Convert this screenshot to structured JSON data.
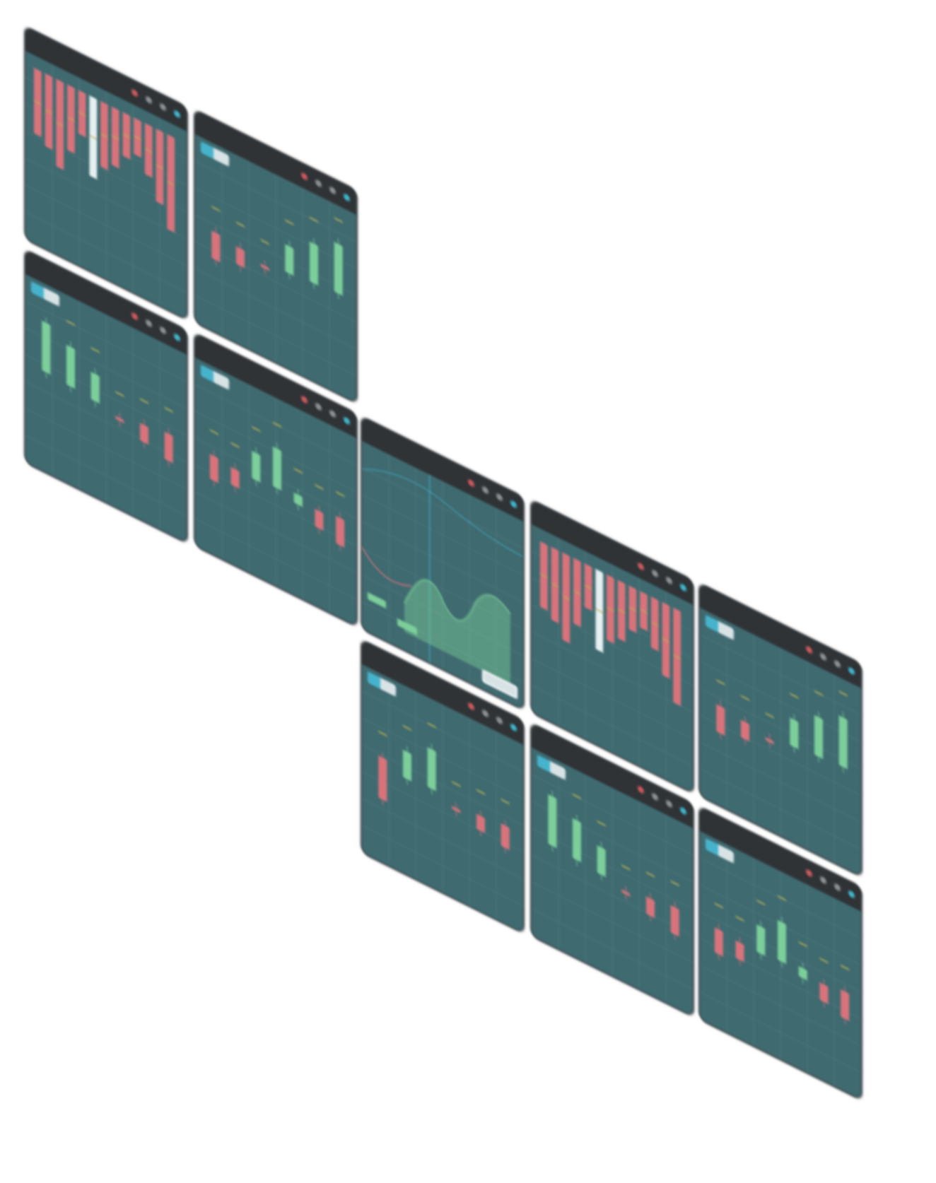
{
  "colors": {
    "panel_bg": "#3e6a70",
    "titlebar_bg": "#2f3336",
    "grid": "#5b8288",
    "bar_negative": "#d9737b",
    "bar_positive": "#7ccf9a",
    "bar_highlight": "#e7f0f0",
    "marker": "#b9b054",
    "curve_red": "#d9737b",
    "curve_area": "#7ccf9a",
    "curve_cyan": "#46b3cc"
  },
  "window_controls": [
    "close-icon",
    "minimize-icon",
    "maximize-icon",
    "help-icon"
  ],
  "panels": [
    {
      "id": "p1",
      "kind": "waterfall",
      "has_tag": false,
      "title": ""
    },
    {
      "id": "p2",
      "kind": "candles",
      "has_tag": true,
      "title": "",
      "values": [
        -0.55,
        -0.35,
        -0.05,
        0.55,
        0.8,
        1.0
      ]
    },
    {
      "id": "p3",
      "kind": "candles",
      "has_tag": true,
      "title": "",
      "values": [
        1.0,
        0.8,
        0.55,
        -0.05,
        -0.35,
        -0.55
      ]
    },
    {
      "id": "p4",
      "kind": "candles",
      "has_tag": true,
      "title": "",
      "values": [
        -0.5,
        -0.35,
        0.55,
        0.8,
        0.2,
        -0.35,
        -0.55
      ]
    },
    {
      "id": "p5",
      "kind": "curves",
      "has_tag": false,
      "title": ""
    },
    {
      "id": "p6",
      "kind": "waterfall",
      "has_tag": false,
      "title": ""
    },
    {
      "id": "p7",
      "kind": "candles",
      "has_tag": true,
      "title": "",
      "values": [
        -0.55,
        -0.35,
        -0.05,
        0.55,
        0.8,
        1.0
      ]
    },
    {
      "id": "p8",
      "kind": "candles",
      "has_tag": true,
      "title": "",
      "values": [
        -0.85,
        0.55,
        0.8,
        -0.05,
        -0.3,
        -0.45
      ]
    },
    {
      "id": "p9",
      "kind": "candles",
      "has_tag": true,
      "title": "",
      "values": [
        1.0,
        0.8,
        0.55,
        -0.05,
        -0.35,
        -0.55
      ]
    },
    {
      "id": "p10",
      "kind": "candles",
      "has_tag": true,
      "title": "",
      "values": [
        -0.5,
        -0.35,
        0.55,
        0.8,
        0.2,
        -0.35,
        -0.55
      ]
    }
  ],
  "waterfall_values": [
    -0.45,
    -0.5,
    -0.6,
    -0.45,
    -0.3,
    0.55,
    -0.45,
    -0.4,
    -0.3,
    -0.25,
    -0.35,
    -0.5,
    -0.65
  ]
}
